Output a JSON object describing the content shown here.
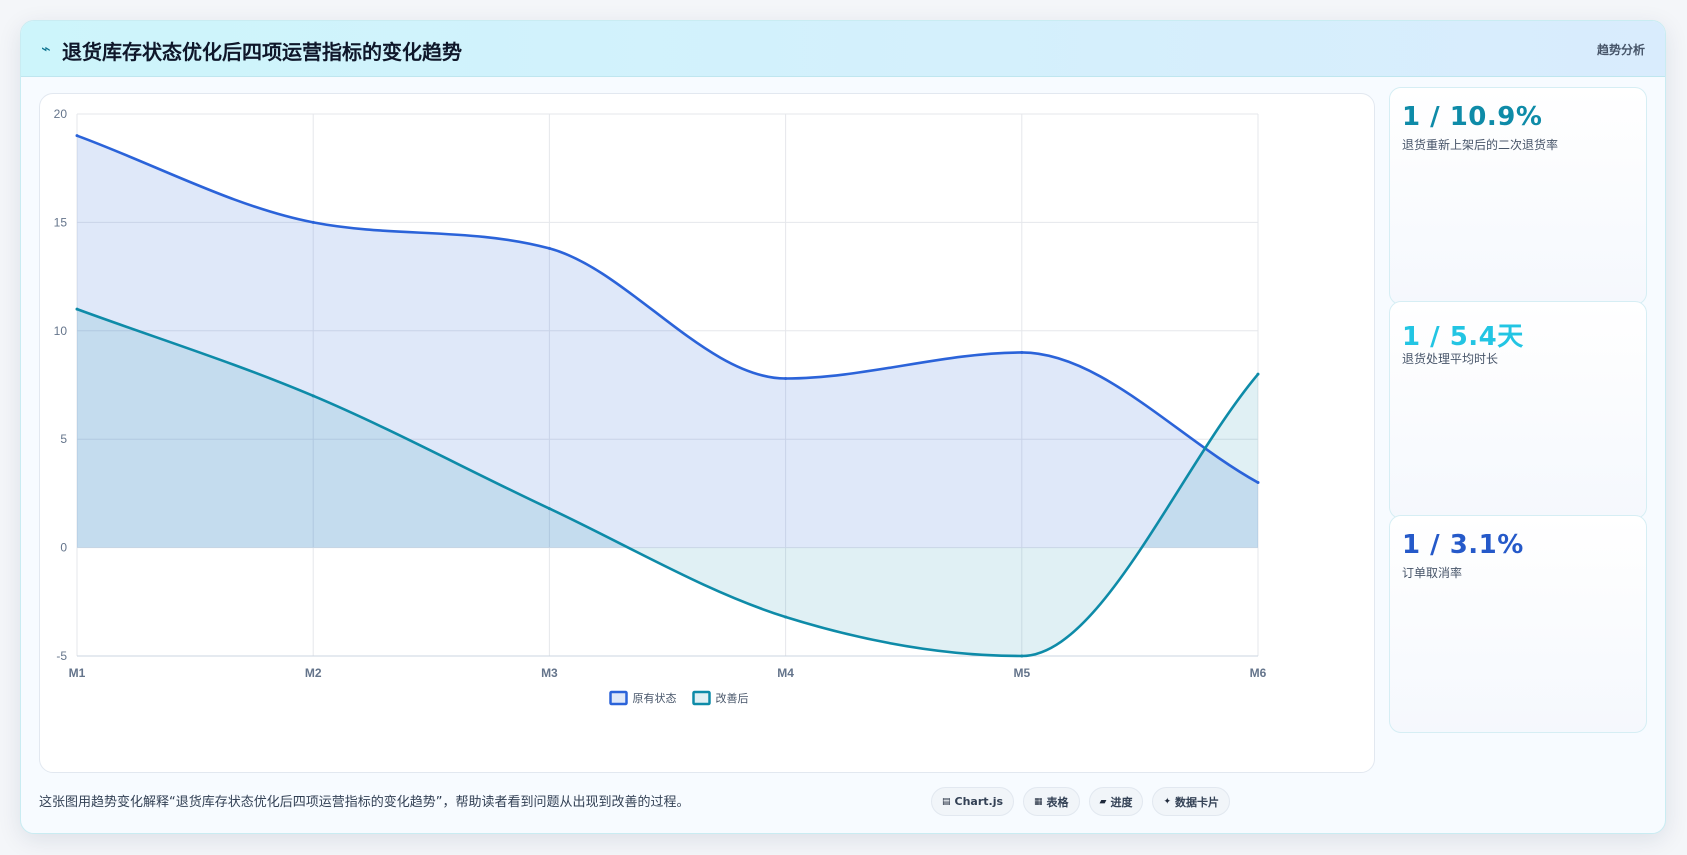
{
  "header": {
    "title": "退货库存状态优化后四项运营指标的变化趋势",
    "tag": "趋势分析",
    "icon": "trend-line-icon"
  },
  "chart_data": {
    "type": "line",
    "area_fill": true,
    "categories": [
      "M1",
      "M2",
      "M3",
      "M4",
      "M5",
      "M6"
    ],
    "series": [
      {
        "name": "原有状态",
        "values": [
          19,
          15,
          13.8,
          7.8,
          9,
          3
        ],
        "color": "#2b63d9",
        "fill": "rgba(43,99,217,0.15)"
      },
      {
        "name": "改善后",
        "values": [
          11,
          7,
          1.8,
          -3.2,
          -5,
          8
        ],
        "color": "#0e8ba8",
        "fill": "rgba(14,139,168,0.13)"
      }
    ],
    "ylim": [
      -5,
      20
    ],
    "yticks": [
      20,
      15,
      10,
      5,
      0,
      -5
    ],
    "grid": true,
    "legend": "bottom"
  },
  "stats": [
    {
      "value": "1 / 10.9%",
      "label": "退货重新上架后的二次退货率",
      "color": "#0e8ba8"
    },
    {
      "value": "1 / 5.4天",
      "label": "退货处理平均时长",
      "color": "#22c5e3"
    },
    {
      "value": "1 / 3.1%",
      "label": "订单取消率",
      "color": "#2559c9"
    }
  ],
  "footer": {
    "note": "这张图用趋势变化解释“退货库存状态优化后四项运营指标的变化趋势”，帮助读者看到问题从出现到改善的过程。",
    "pills": [
      {
        "icon": "▤",
        "label": "Chart.js"
      },
      {
        "icon": "▦",
        "label": "表格"
      },
      {
        "icon": "▰",
        "label": "进度"
      },
      {
        "icon": "✦",
        "label": "数据卡片"
      }
    ]
  }
}
